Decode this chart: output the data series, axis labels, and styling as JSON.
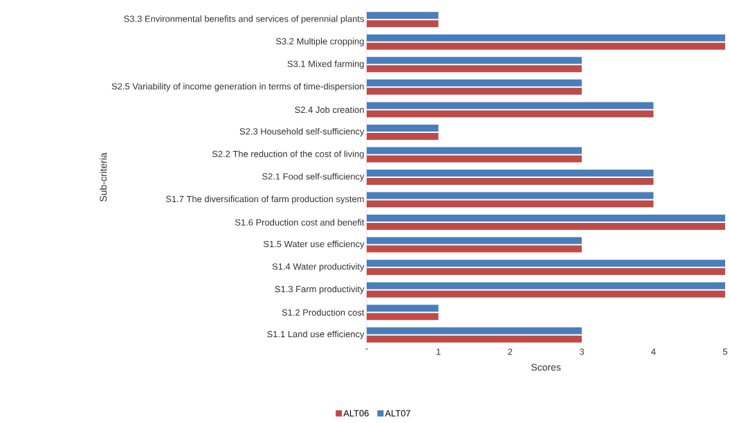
{
  "chart_data": {
    "type": "bar",
    "orientation": "horizontal",
    "xlabel": "Scores",
    "ylabel": "Sub-criteria",
    "categories": [
      "S3.3 Environmental benefits and services of perennial plants",
      "S3.2 Multiple cropping",
      "S3.1 Mixed farming",
      "S2.5 Variability of income generation in terms of time-dispersion",
      "S2.4 Job creation",
      "S2.3 Household self-sufficiency",
      "S2.2 The reduction of the cost of living",
      "S2.1 Food self-sufficiency",
      "S1.7 The diversification of farm production system",
      "S1.6 Production cost and benefit",
      "S1.5 Water use efficiency",
      "S1.4 Water productivity",
      "S1.3 Farm productivity",
      "S1.2 Production cost",
      "S1.1 Land use efficiency"
    ],
    "series": [
      {
        "name": "ALT06",
        "color": "#be4b48",
        "values": [
          1,
          5,
          3,
          3,
          4,
          1,
          3,
          4,
          4,
          5,
          3,
          5,
          5,
          1,
          3
        ]
      },
      {
        "name": "ALT07",
        "color": "#4a7ebb",
        "values": [
          1,
          5,
          3,
          3,
          4,
          1,
          3,
          4,
          4,
          5,
          3,
          5,
          5,
          1,
          3
        ]
      }
    ],
    "xlim": [
      0,
      5
    ],
    "xticks": [
      {
        "value": 0,
        "label": "-"
      },
      1,
      2,
      3,
      4,
      5
    ],
    "grid": false,
    "legend": "bottom"
  }
}
